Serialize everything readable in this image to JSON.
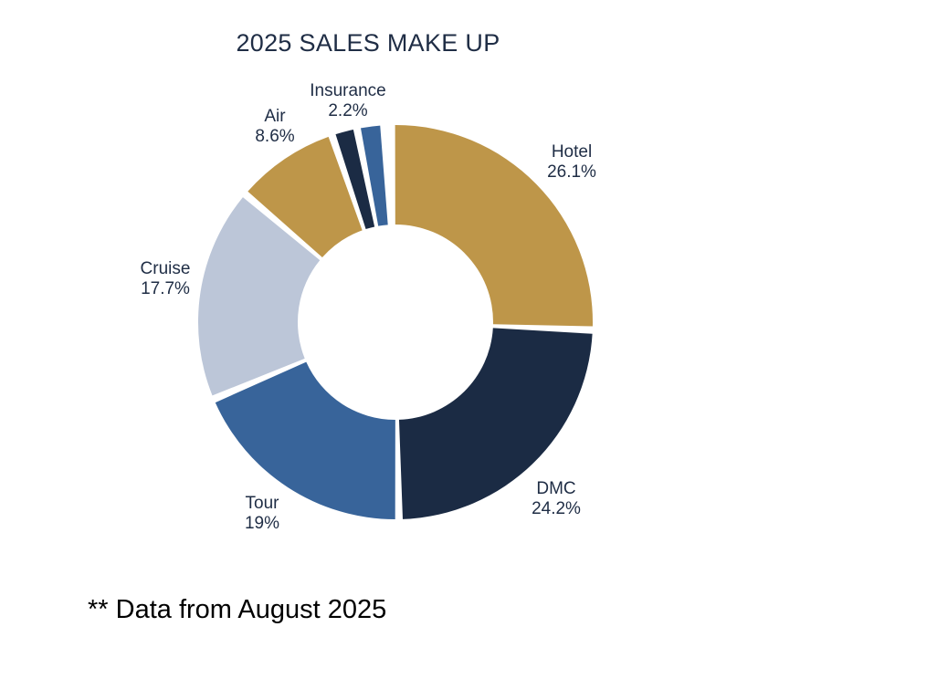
{
  "chart_data": {
    "type": "pie",
    "variant": "donut",
    "title": "2025 SALES MAKE UP",
    "legend": "none",
    "slices": [
      {
        "label": "Hotel",
        "value": 26.1,
        "value_label": "26.1%",
        "color": "#be9649"
      },
      {
        "label": "DMC",
        "value": 24.2,
        "value_label": "24.2%",
        "color": "#1b2b44"
      },
      {
        "label": "Tour",
        "value": 19.0,
        "value_label": "19%",
        "color": "#38649a"
      },
      {
        "label": "Cruise",
        "value": 17.7,
        "value_label": "17.7%",
        "color": "#bcc6d8"
      },
      {
        "label": "Air",
        "value": 8.6,
        "value_label": "8.6%",
        "color": "#be9649"
      },
      {
        "label": "",
        "value": 2.1,
        "value_label": "",
        "color": "#1b2b44"
      },
      {
        "label": "Insurance",
        "value": 2.2,
        "value_label": "2.2%",
        "color": "#38649a"
      },
      {
        "label": "",
        "value": 0.6,
        "value_label": "",
        "color": "#bcc6d8"
      }
    ]
  },
  "footnote": "** Data from August 2025"
}
